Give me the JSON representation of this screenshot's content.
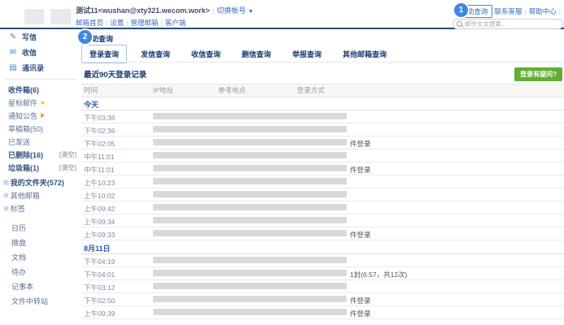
{
  "annotations": {
    "step1": "1",
    "step2": "2"
  },
  "topbar": {
    "account_display": "测试11<wushan@xty321.wecom.work>",
    "switch_label": "切换帐号",
    "nav_links": [
      "邮箱首页",
      "设置",
      "管理邮箱",
      "客户端"
    ],
    "self_query_label": "自助查询",
    "right_links": [
      "联系客服",
      "帮助中心"
    ],
    "search_placeholder": "邮件全文搜索.."
  },
  "sidebar": {
    "actions": [
      {
        "label": "写信",
        "icon": "compose-icon",
        "glyph": "✎"
      },
      {
        "label": "收信",
        "icon": "mail-icon",
        "glyph": "✉"
      },
      {
        "label": "通讯录",
        "icon": "contacts-icon",
        "glyph": "▤"
      }
    ],
    "folders": [
      {
        "label": "收件箱(6)",
        "bold": true
      },
      {
        "label": "星标邮件",
        "icon": "star-icon"
      },
      {
        "label": "通知公告",
        "icon": "horn-icon"
      },
      {
        "label": "草稿箱(50)"
      },
      {
        "label": "已发送"
      },
      {
        "label": "已删除(16)",
        "bold": true,
        "action": "[清空]"
      },
      {
        "label": "垃圾箱(1)",
        "bold": true,
        "action": "[清空]"
      }
    ],
    "tree": [
      {
        "label": "我的文件夹(572)",
        "bold": true
      },
      {
        "label": "其他邮箱"
      },
      {
        "label": "标签"
      }
    ],
    "apps": [
      "日历",
      "微盘",
      "文档",
      "待办",
      "记事本",
      "文件中转站"
    ]
  },
  "main": {
    "title": "自助查询",
    "tabs": [
      {
        "label": "登录查询",
        "active": true
      },
      {
        "label": "发信查询"
      },
      {
        "label": "收信查询"
      },
      {
        "label": "删信查询"
      },
      {
        "label": "举报查询"
      },
      {
        "label": "其他邮箱查询"
      }
    ],
    "section_title": "最近90天登录记录",
    "question_button": "登录有疑问?",
    "table": {
      "headers": [
        "时间",
        "IP地址",
        "参考地点",
        "登录方式"
      ],
      "groups": [
        {
          "label": "今天",
          "rows": [
            {
              "time": "下午03:36",
              "suffix": ""
            },
            {
              "time": "下午02:36",
              "suffix": ""
            },
            {
              "time": "下午02:05",
              "suffix": "件登录"
            },
            {
              "time": "中午11:01",
              "suffix": ""
            },
            {
              "time": "中午11:01",
              "suffix": "件登录"
            },
            {
              "time": "上午10:23",
              "suffix": ""
            },
            {
              "time": "上午10:02",
              "suffix": ""
            },
            {
              "time": "上午09:42",
              "suffix": ""
            },
            {
              "time": "上午09:34",
              "suffix": ""
            },
            {
              "time": "上午09:33",
              "suffix": "件登录"
            }
          ]
        },
        {
          "label": "8月11日",
          "rows": [
            {
              "time": "下午04:19",
              "suffix": ""
            },
            {
              "time": "下午04:01",
              "suffix": "1封(6:57，共12次)"
            },
            {
              "time": "下午03:12",
              "suffix": ""
            },
            {
              "time": "下午02:50",
              "suffix": "件登录"
            },
            {
              "time": "上午09:39",
              "suffix": "件登录"
            }
          ]
        }
      ]
    }
  },
  "colors": {
    "accent_blue": "#3f87e0",
    "navy": "#1a3a75",
    "green": "#62ae35",
    "redaction": "#d9d9d9"
  }
}
